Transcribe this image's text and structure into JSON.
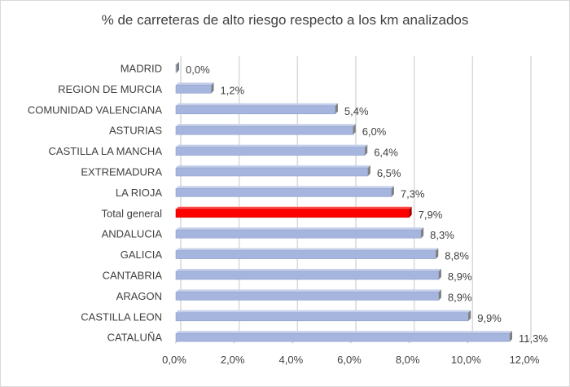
{
  "chart_data": {
    "type": "bar",
    "orientation": "horizontal",
    "style": "3d",
    "title": "% de carreteras de alto riesgo respecto a los km analizados",
    "categories": [
      "MADRID",
      "REGION DE MURCIA",
      "COMUNIDAD VALENCIANA",
      "ASTURIAS",
      "CASTILLA LA MANCHA",
      "EXTREMADURA",
      "LA RIOJA",
      "Total general",
      "ANDALUCIA",
      "GALICIA",
      "CANTABRIA",
      "ARAGON",
      "CASTILLA LEON",
      "CATALUÑA"
    ],
    "values": [
      0.0,
      1.2,
      5.4,
      6.0,
      6.4,
      6.5,
      7.3,
      7.9,
      8.3,
      8.8,
      8.9,
      8.9,
      9.9,
      11.3
    ],
    "data_labels": [
      "0,0%",
      "1,2%",
      "5,4%",
      "6,0%",
      "6,4%",
      "6,5%",
      "7,3%",
      "7,9%",
      "8,3%",
      "8,8%",
      "8,9%",
      "8,9%",
      "9,9%",
      "11,3%"
    ],
    "xlim": [
      0,
      12
    ],
    "x_ticks": [
      "0,0%",
      "2,0%",
      "4,0%",
      "6,0%",
      "8,0%",
      "10,0%",
      "12,0%"
    ],
    "grid": true,
    "legend": "none",
    "colors": {
      "bar": "#a6b5de",
      "highlight": "#ff0000",
      "highlight_category": "Total general",
      "bar_end": "#7f7f7f",
      "grid": "#d9d9d9"
    }
  }
}
